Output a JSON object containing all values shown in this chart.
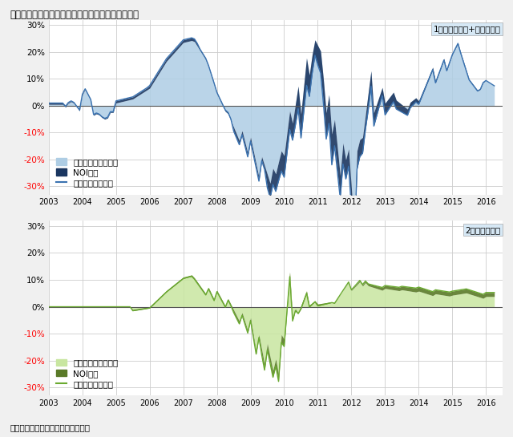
{
  "title": "図表２．　不動産価格変化率（前年比）の要因分解",
  "source": "出所）三井住友トラスト基礎研究所",
  "chart1_label": "1　　オフィス+都心型商業",
  "chart2_label": "2　　　　住宅",
  "legend1": [
    "キャップレート要因",
    "NOI要因",
    "価格指数の変化率"
  ],
  "legend2": [
    "キャップレート要因",
    "NOI要因",
    "価格指数の変化率"
  ],
  "cap_color1": "#aecde4",
  "noi_color1": "#1a3660",
  "line_color1": "#3a72b0",
  "cap_color2": "#c8e6a0",
  "noi_color2": "#5a7a28",
  "line_color2": "#6aaa30",
  "yticks": [
    -0.3,
    -0.2,
    -0.1,
    0.0,
    0.1,
    0.2,
    0.3
  ],
  "ylim": [
    -0.33,
    0.32
  ],
  "background": "#f0f0f0",
  "plot_bg": "#ffffff",
  "grid_color": "#cccccc"
}
